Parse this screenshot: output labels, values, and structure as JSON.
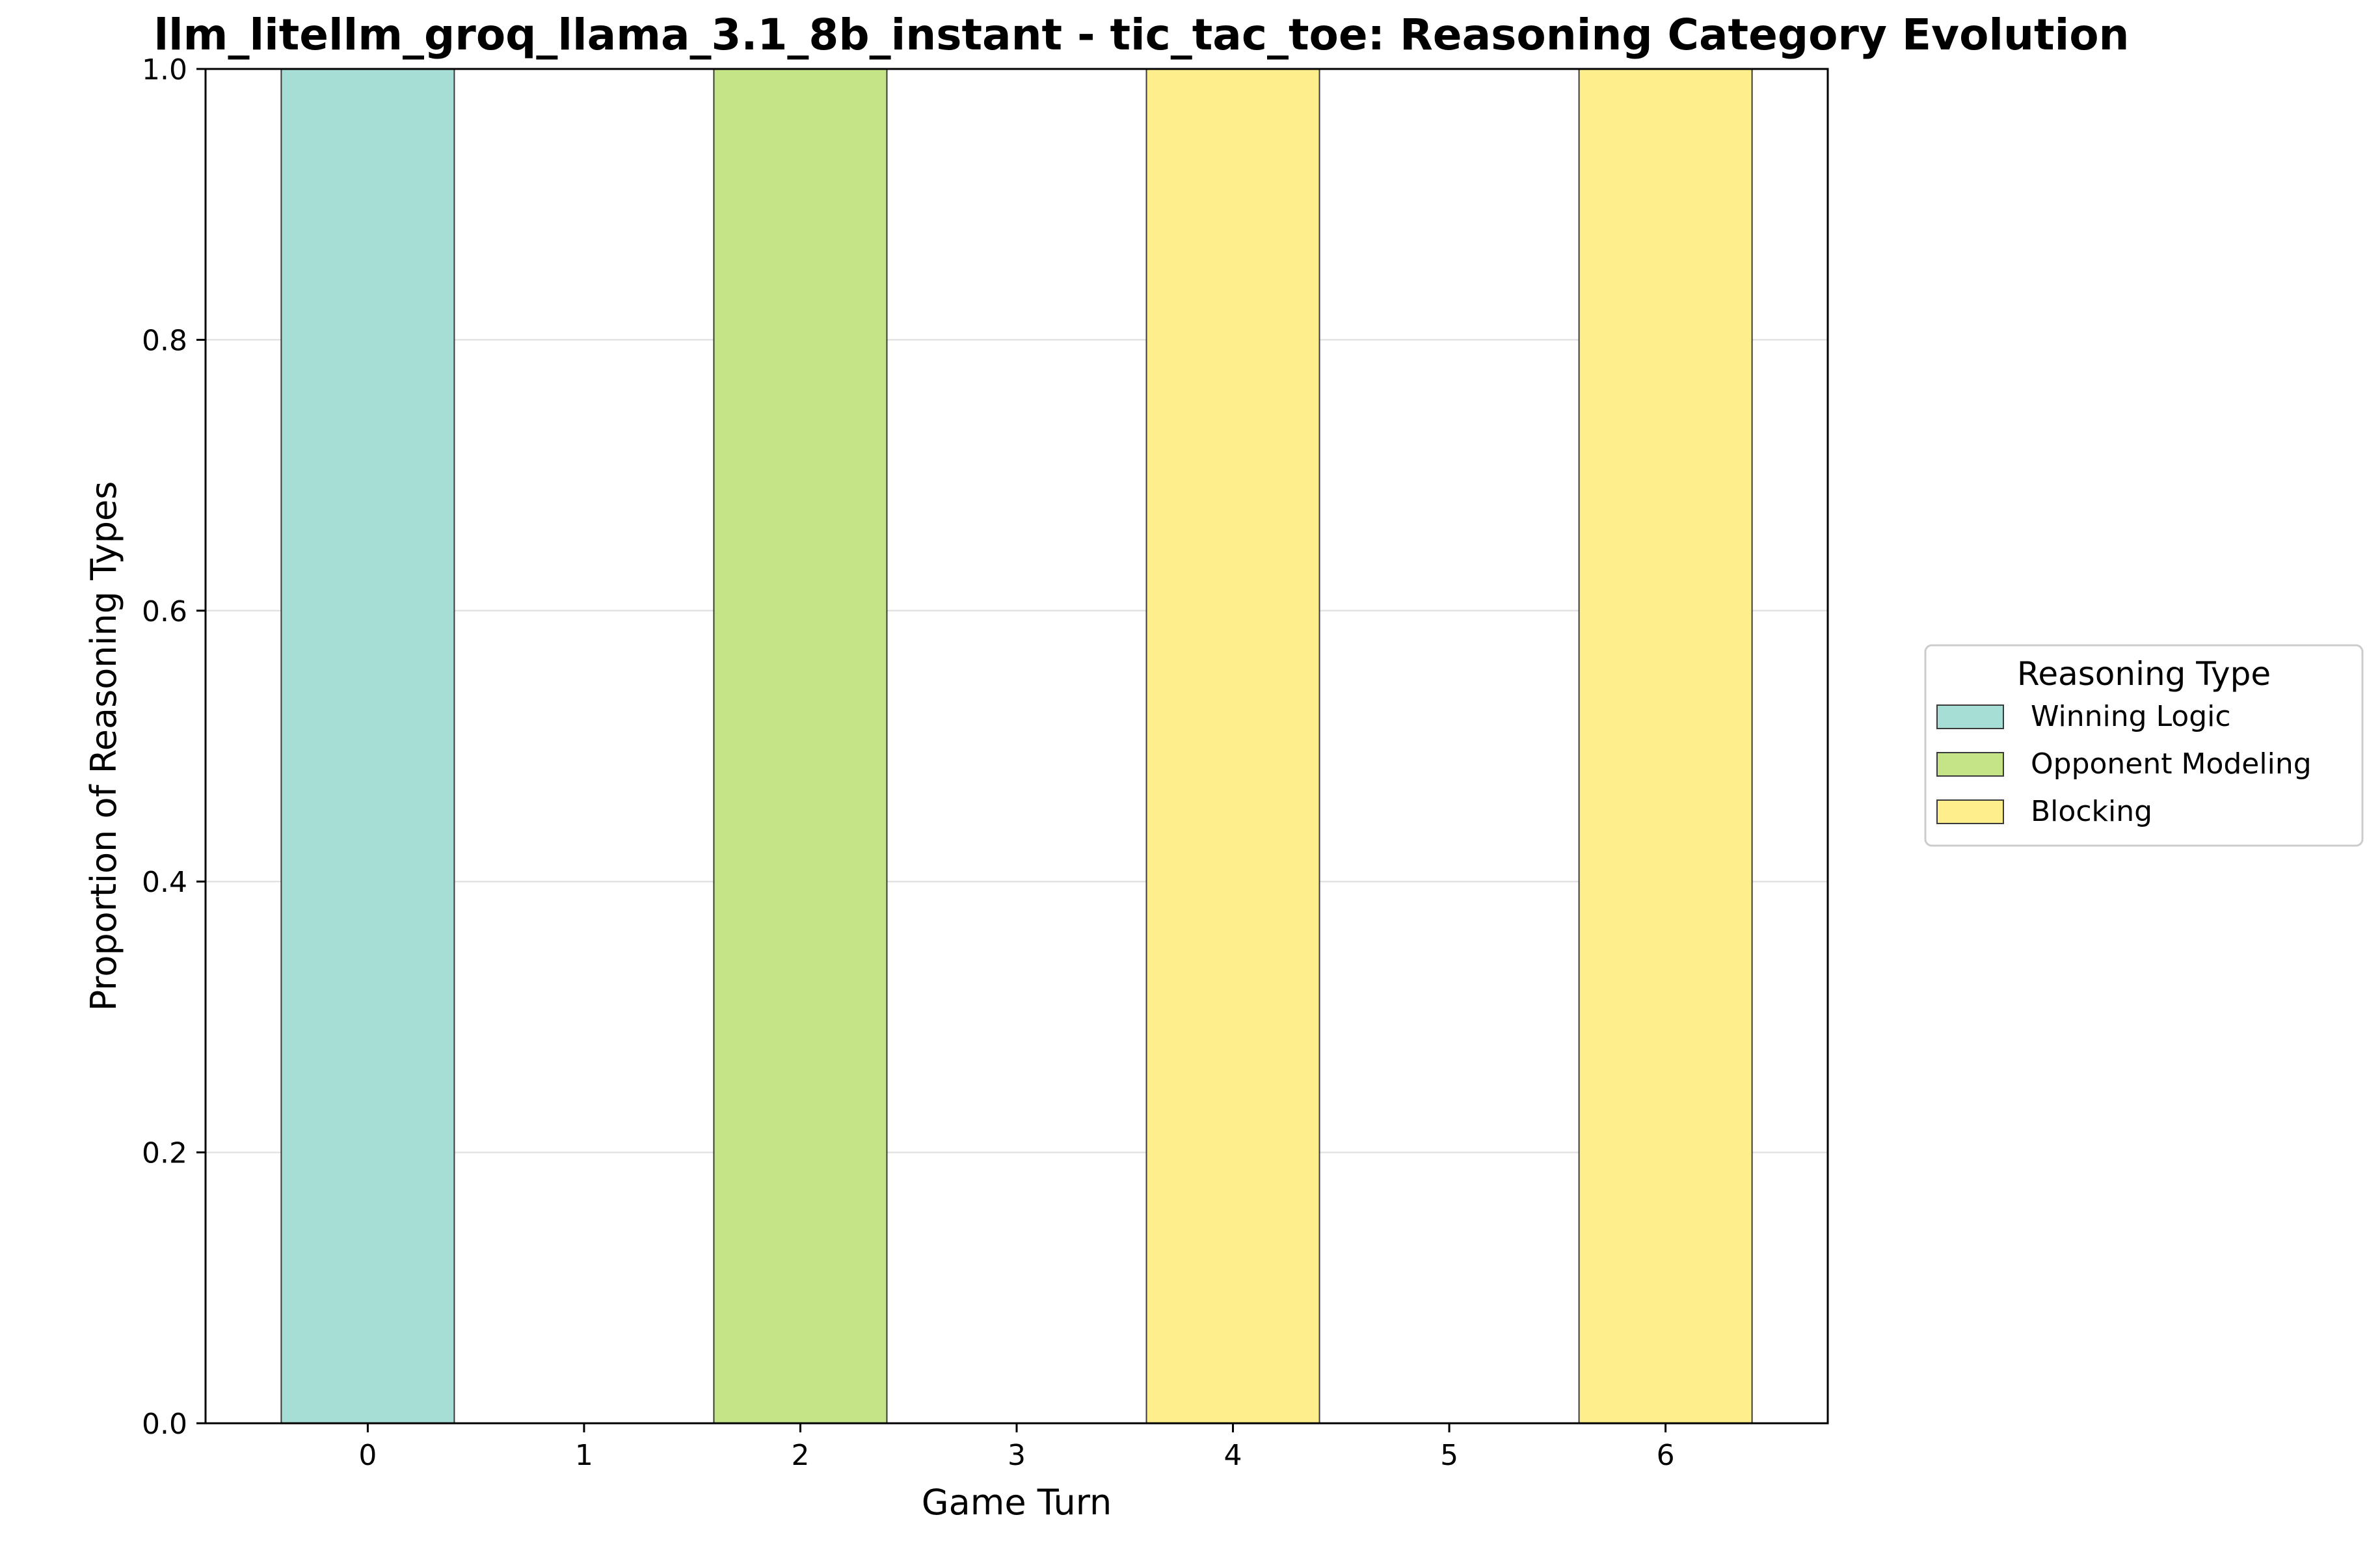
{
  "chart_data": {
    "type": "bar",
    "stacked": true,
    "title": "llm_litellm_groq_llama_3.1_8b_instant - tic_tac_toe: Reasoning Category Evolution",
    "xlabel": "Game Turn",
    "ylabel": "Proportion of Reasoning Types",
    "categories": [
      "0",
      "1",
      "2",
      "3",
      "4",
      "5",
      "6"
    ],
    "ylim": [
      0,
      1
    ],
    "yticks": [
      0.0,
      0.2,
      0.4,
      0.6,
      0.8,
      1.0
    ],
    "ytick_labels": [
      "0.0",
      "0.2",
      "0.4",
      "0.6",
      "0.8",
      "1.0"
    ],
    "grid": "horizontal",
    "legend_title": "Reasoning Type",
    "legend_position": "center-right (outside)",
    "series": [
      {
        "name": "Winning Logic",
        "color": "#a6ddd5",
        "values": [
          1,
          0,
          0,
          0,
          0,
          0,
          0
        ]
      },
      {
        "name": "Opponent Modeling",
        "color": "#c4e487",
        "values": [
          0,
          0,
          1,
          0,
          0,
          0,
          0
        ]
      },
      {
        "name": "Blocking",
        "color": "#ffef8c",
        "values": [
          0,
          0,
          0,
          0,
          1,
          0,
          1
        ]
      }
    ]
  }
}
